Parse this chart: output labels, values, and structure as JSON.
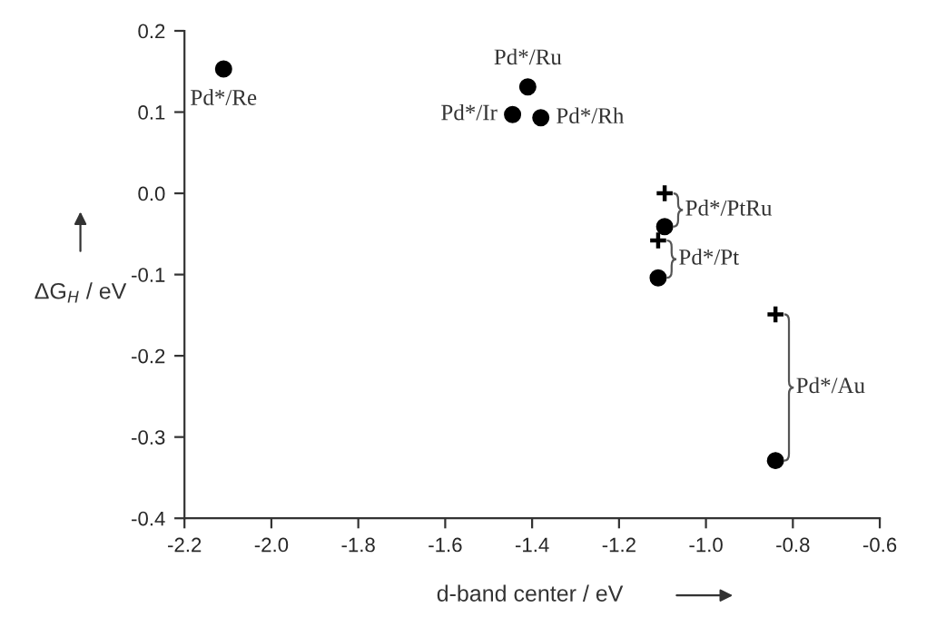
{
  "chart_data": {
    "type": "scatter",
    "xlabel": "d-band center / eV",
    "ylabel": "ΔG$_{H}$ / eV",
    "xlim": [
      -2.2,
      -0.6
    ],
    "xticks": [
      {
        "value": -2.2,
        "label": "-2.2"
      },
      {
        "value": -2.0,
        "label": "-2.0"
      },
      {
        "value": -1.8,
        "label": "-1.8"
      },
      {
        "value": -1.6,
        "label": "-1.6"
      },
      {
        "value": -1.4,
        "label": "-1.4"
      },
      {
        "value": -1.2,
        "label": "-1.2"
      },
      {
        "value": -1.0,
        "label": "-1.0"
      },
      {
        "value": -0.8,
        "label": "-0.8"
      },
      {
        "value": -0.6,
        "label": "-0.6"
      }
    ],
    "ylim": [
      -0.4,
      0.2
    ],
    "yticks": [
      {
        "value": -0.4,
        "label": "-0.4"
      },
      {
        "value": -0.3,
        "label": "-0.3"
      },
      {
        "value": -0.2,
        "label": "-0.2"
      },
      {
        "value": -0.1,
        "label": "-0.1"
      },
      {
        "value": 0.0,
        "label": "0.0"
      },
      {
        "value": 0.1,
        "label": "0.1"
      },
      {
        "value": 0.2,
        "label": "0.2"
      }
    ],
    "series": [
      {
        "color": "#000000",
        "marker": "circle",
        "x": [
          -2.11,
          -1.41,
          -1.445,
          -1.38,
          -1.095,
          -1.11,
          -0.84
        ],
        "values": [
          0.153,
          0.131,
          0.097,
          0.093,
          -0.041,
          -0.104,
          -0.329
        ]
      },
      {
        "color": "#000000",
        "marker": "cross",
        "x": [
          -1.095,
          -1.11,
          -0.84
        ],
        "values": [
          0.0,
          -0.058,
          -0.149
        ]
      }
    ],
    "annotations": [
      {
        "text": "Pd*/Re",
        "x": -2.11,
        "y": 0.153
      },
      {
        "text": "Pd*/Ru",
        "x": -1.41,
        "y": 0.131
      },
      {
        "text": "Pd*/Ir",
        "x": -1.445,
        "y": 0.097
      },
      {
        "text": "Pd*/Rh",
        "x": -1.38,
        "y": 0.093
      },
      "Pd*/PtRu",
      "Pd*/Pt",
      "Pd*/Au"
    ],
    "grid": false,
    "legend": false
  }
}
